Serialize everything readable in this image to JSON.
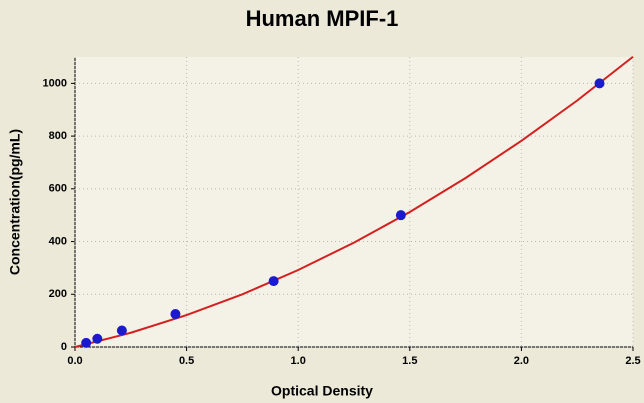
{
  "chart_data": {
    "type": "scatter",
    "title": "Human MPIF-1",
    "x_label": "Optical Density",
    "y_label": "Concentration(pg/mL)",
    "xlim": [
      0,
      2.5
    ],
    "ylim": [
      0,
      1100
    ],
    "xticks": [
      {
        "value": 0,
        "label": "0.0"
      },
      0.5,
      {
        "value": 1,
        "label": "1.0"
      },
      1.5,
      {
        "value": 2,
        "label": "2.0"
      },
      2.5
    ],
    "yticks": [
      0,
      200,
      400,
      600,
      800,
      1000
    ],
    "grid": true,
    "series": [
      {
        "type": "line",
        "color": "#d42020",
        "x": [
          0,
          0.25,
          0.5,
          0.75,
          1,
          1.25,
          1.5,
          1.75,
          2,
          2.25,
          2.5
        ],
        "values": [
          0,
          54,
          121,
          200,
          292,
          396,
          512,
          641,
          782,
          935,
          1101
        ]
      },
      {
        "type": "scatter",
        "color": "#1a1ad0",
        "x": [
          0.05,
          0.1,
          0.21,
          0.45,
          0.89,
          1.46,
          2.35
        ],
        "values": [
          15.6,
          31.2,
          62.5,
          125,
          250,
          500,
          1000
        ]
      }
    ]
  }
}
